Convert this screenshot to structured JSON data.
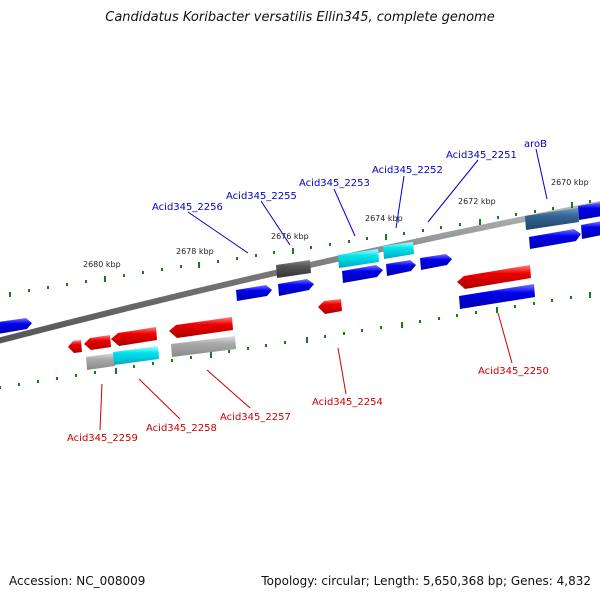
{
  "title": "Candidatus Koribacter versatilis Ellin345, complete genome",
  "footer": {
    "accession": "Accession: NC_008009",
    "stats": "Topology: circular; Length: 5,650,368 bp; Genes: 4,832"
  },
  "colors": {
    "forward_label": "#0000cc",
    "reverse_label": "#cc0000",
    "gene_blue": "#0000ee",
    "gene_red": "#ee0000",
    "gene_cyan": "#00e5ee",
    "gene_grey": "#999999",
    "gene_darkgrey": "#555555",
    "gene_steel": "#336699",
    "backbone": "#777777",
    "tick": "#1a7a1a"
  },
  "kbp_markers": [
    "2670 kbp",
    "2672 kbp",
    "2674 kbp",
    "2676 kbp",
    "2678 kbp",
    "2680 kbp"
  ],
  "forward_labels": [
    "aroB",
    "Acid345_2251",
    "Acid345_2252",
    "Acid345_2253",
    "Acid345_2255",
    "Acid345_2256"
  ],
  "reverse_labels": [
    "Acid345_2250",
    "Acid345_2254",
    "Acid345_2257",
    "Acid345_2258",
    "Acid345_2259"
  ]
}
